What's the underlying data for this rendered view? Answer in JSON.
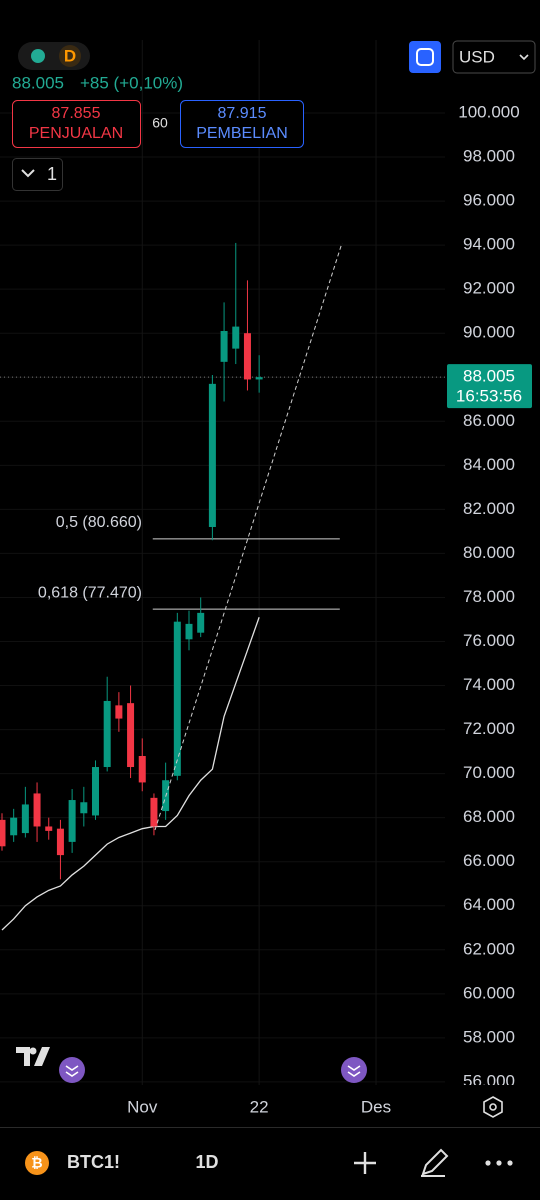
{
  "header": {
    "timeframe_badge": "D",
    "price": "88.005",
    "change": "+85 (+0,10%)"
  },
  "order": {
    "sell_price": "87.855",
    "sell_label": "PENJUALAN",
    "spread": "60",
    "buy_price": "87.915",
    "buy_label": "PEMBELIAN"
  },
  "toolbar": {
    "currency": "USD",
    "lot": "1"
  },
  "bottom_bar": {
    "symbol": "BTC1!",
    "interval": "1D"
  },
  "chart_data": {
    "type": "candlestick",
    "xlim": [
      -0.17,
      37.9
    ],
    "xticks": [
      {
        "value": 12,
        "label": "Nov"
      },
      22,
      {
        "value": 32,
        "label": "Des"
      }
    ],
    "ylim": [
      55.86,
      103.315
    ],
    "yticks": [
      {
        "value": 56,
        "label": "56.000"
      },
      {
        "value": 58,
        "label": "58.000"
      },
      {
        "value": 60,
        "label": "60.000"
      },
      {
        "value": 62,
        "label": "62.000"
      },
      {
        "value": 64,
        "label": "64.000"
      },
      {
        "value": 66,
        "label": "66.000"
      },
      {
        "value": 68,
        "label": "68.000"
      },
      {
        "value": 70,
        "label": "70.000"
      },
      {
        "value": 72,
        "label": "72.000"
      },
      {
        "value": 74,
        "label": "74.000"
      },
      {
        "value": 76,
        "label": "76.000"
      },
      {
        "value": 78,
        "label": "78.000"
      },
      {
        "value": 80,
        "label": "80.000"
      },
      {
        "value": 82,
        "label": "82.000"
      },
      {
        "value": 84,
        "label": "84.000"
      },
      {
        "value": 86,
        "label": "86.000"
      },
      {
        "value": 88,
        "label": "88.000"
      },
      {
        "value": 90,
        "label": "90.000"
      },
      {
        "value": 92,
        "label": "92.000"
      },
      {
        "value": 94,
        "label": "94.000"
      },
      {
        "value": 96,
        "label": "96.000"
      },
      {
        "value": 98,
        "label": "98.000"
      },
      {
        "value": 100,
        "label": "100.000"
      }
    ],
    "grid": true,
    "up_color": "#089981",
    "down_color": "#f23645",
    "candles": {
      "open": [
        67.9,
        67.2,
        67.3,
        69.1,
        67.6,
        67.5,
        66.9,
        68.2,
        68.1,
        70.3,
        73.1,
        73.2,
        70.8,
        68.9,
        68.3,
        69.9,
        76.1,
        76.4,
        81.2,
        88.7,
        89.3,
        90.0,
        87.9
      ],
      "high": [
        68.2,
        68.4,
        69.4,
        69.6,
        68.0,
        67.9,
        69.3,
        69.4,
        70.6,
        74.4,
        73.7,
        74.0,
        71.6,
        69.1,
        70.5,
        77.3,
        77.4,
        78.0,
        88.1,
        91.4,
        94.1,
        92.4,
        89.0
      ],
      "low": [
        66.5,
        66.9,
        67.1,
        66.9,
        67.0,
        65.2,
        66.4,
        67.6,
        67.9,
        70.1,
        71.9,
        69.8,
        69.2,
        67.2,
        67.9,
        69.7,
        75.6,
        76.2,
        80.6,
        86.9,
        88.6,
        87.4,
        87.3
      ],
      "close": [
        66.7,
        68.0,
        68.6,
        67.6,
        67.4,
        66.3,
        68.8,
        68.7,
        70.3,
        73.3,
        72.5,
        70.3,
        69.6,
        67.6,
        69.7,
        76.9,
        76.8,
        77.3,
        87.7,
        90.1,
        90.3,
        87.9,
        88.005
      ]
    },
    "moving_average": {
      "color": "#e0e0e0",
      "values": [
        62.9,
        63.4,
        64.0,
        64.4,
        64.7,
        64.9,
        65.4,
        65.8,
        66.3,
        66.8,
        67.1,
        67.3,
        67.5,
        67.6,
        67.6,
        68.1,
        69.0,
        69.7,
        70.2,
        72.6,
        74.1,
        75.6,
        77.1
      ]
    },
    "fib_levels": [
      {
        "value": 80.66,
        "label": "0,5 (80.660)"
      },
      {
        "value": 77.47,
        "label": "0,618 (77.470)"
      }
    ],
    "last_price": {
      "value": 88.005,
      "label": "88.005"
    },
    "countdown": "16:53:56"
  }
}
